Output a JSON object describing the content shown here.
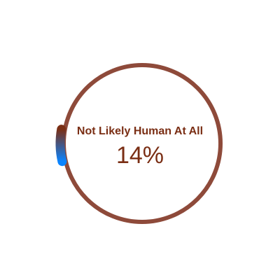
{
  "gauge": {
    "label": "Not Likely Human At All",
    "percent_text": "14%",
    "fraction": 0.14,
    "ring_color": "#8e4a3a",
    "progress_gradient": [
      "#0a84ff",
      "#7a2e14"
    ]
  }
}
